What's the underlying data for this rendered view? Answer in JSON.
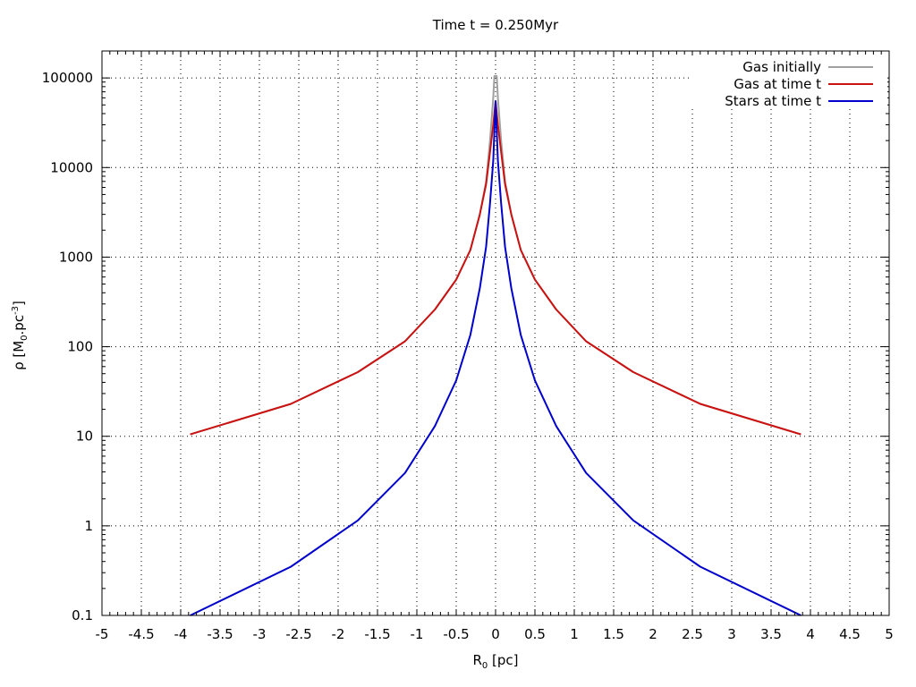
{
  "chart_data": {
    "type": "line",
    "title": "Time t = 0.250Myr",
    "xlabel": {
      "main": "R",
      "sub": "0",
      "unit": " [pc]"
    },
    "ylabel": {
      "prefix": "ρ [M",
      "sub": "0",
      "mid": ".pc",
      "sup": "-3",
      "suffix": "]"
    },
    "xlim": [
      -5,
      5
    ],
    "ylim": [
      0.1,
      200000
    ],
    "yscale": "log",
    "grid": true,
    "legend_position": "top-right",
    "x_ticks": [
      "-5",
      "-4.5",
      "-4",
      "-3.5",
      "-3",
      "-2.5",
      "-2",
      "-1.5",
      "-1",
      "-0.5",
      "0",
      "0.5",
      "1",
      "1.5",
      "2",
      "2.5",
      "3",
      "3.5",
      "4",
      "4.5",
      "5"
    ],
    "y_ticks": [
      "0.1",
      "1",
      "10",
      "100",
      "1000",
      "10000",
      "100000"
    ],
    "series": [
      {
        "name": "Gas initially",
        "color": "#a0a0a0",
        "x": [
          -3.88,
          -2.6,
          -1.75,
          -1.15,
          -0.77,
          -0.5,
          -0.32,
          -0.2,
          -0.12,
          -0.07,
          -0.03,
          -0.015,
          0.015,
          0.03,
          0.07,
          0.12,
          0.2,
          0.32,
          0.5,
          0.77,
          1.15,
          1.75,
          2.6,
          3.88
        ],
        "y": [
          10.5,
          23,
          52,
          115,
          260,
          560,
          1200,
          3000,
          7000,
          20000,
          60000,
          105000,
          105000,
          60000,
          20000,
          7000,
          3000,
          1200,
          560,
          260,
          115,
          52,
          23,
          10.5
        ]
      },
      {
        "name": "Gas at time t",
        "color": "#cc1111",
        "x": [
          -3.88,
          -2.6,
          -1.75,
          -1.15,
          -0.77,
          -0.5,
          -0.32,
          -0.2,
          -0.12,
          -0.07,
          -0.03,
          0,
          0.03,
          0.07,
          0.12,
          0.2,
          0.32,
          0.5,
          0.77,
          1.15,
          1.75,
          2.6,
          3.88
        ],
        "y": [
          10.5,
          23,
          52,
          115,
          260,
          560,
          1200,
          3000,
          6500,
          15000,
          30000,
          55000,
          30000,
          15000,
          6500,
          3000,
          1200,
          560,
          260,
          115,
          52,
          23,
          10.5
        ]
      },
      {
        "name": "Stars at time t",
        "color": "#0000cc",
        "x": [
          -3.88,
          -2.6,
          -1.75,
          -1.15,
          -0.77,
          -0.5,
          -0.32,
          -0.2,
          -0.12,
          -0.07,
          -0.03,
          0,
          0.03,
          0.07,
          0.12,
          0.2,
          0.32,
          0.5,
          0.77,
          1.15,
          1.75,
          2.6,
          3.88
        ],
        "y": [
          0.1,
          0.35,
          1.15,
          3.9,
          13,
          42,
          135,
          450,
          1300,
          4000,
          12000,
          55000,
          12000,
          4000,
          1300,
          450,
          135,
          42,
          13,
          3.9,
          1.15,
          0.35,
          0.1
        ]
      }
    ]
  }
}
